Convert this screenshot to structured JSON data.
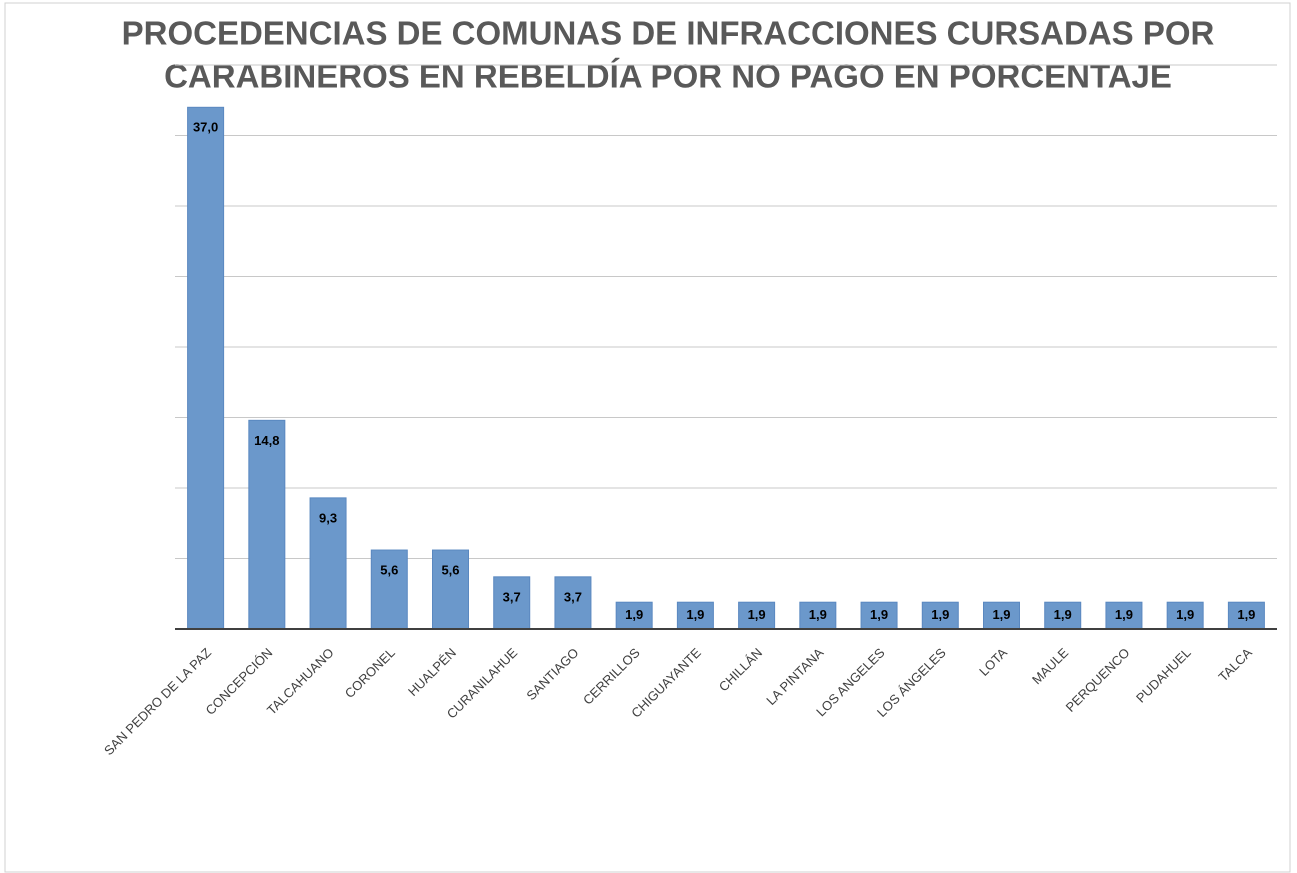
{
  "chart_data": {
    "type": "bar",
    "title": [
      "PROCEDENCIAS DE COMUNAS DE INFRACCIONES CURSADAS POR",
      "CARABINEROS EN REBELDÍA POR NO PAGO EN PORCENTAJE"
    ],
    "categories": [
      "SAN PEDRO DE LA PAZ",
      "CONCEPCIÓN",
      "TALCAHUANO",
      "CORONEL",
      "HUALPÉN",
      "CURANILAHUE",
      "SANTIAGO",
      "CERRILLOS",
      "CHIGUAYANTE",
      "CHILLÁN",
      "LA PINTANA",
      "LOS ANGELES",
      "LOS ÁNGELES",
      "LOTA",
      "MAULE",
      "PERQUENCO",
      "PUDAHUEL",
      "TALCA"
    ],
    "values": [
      37.0,
      14.8,
      9.3,
      5.6,
      5.6,
      3.7,
      3.7,
      1.9,
      1.9,
      1.9,
      1.9,
      1.9,
      1.9,
      1.9,
      1.9,
      1.9,
      1.9,
      1.9
    ],
    "value_labels": [
      "37,0",
      "14,8",
      "9,3",
      "5,6",
      "5,6",
      "3,7",
      "3,7",
      "1,9",
      "1,9",
      "1,9",
      "1,9",
      "1,9",
      "1,9",
      "1,9",
      "1,9",
      "1,9",
      "1,9",
      "1,9"
    ],
    "color": "#6b98cb",
    "ylim": [
      0,
      40
    ],
    "yticks": [
      0,
      5,
      10,
      15,
      20,
      25,
      30,
      35,
      40
    ],
    "grid": true
  }
}
